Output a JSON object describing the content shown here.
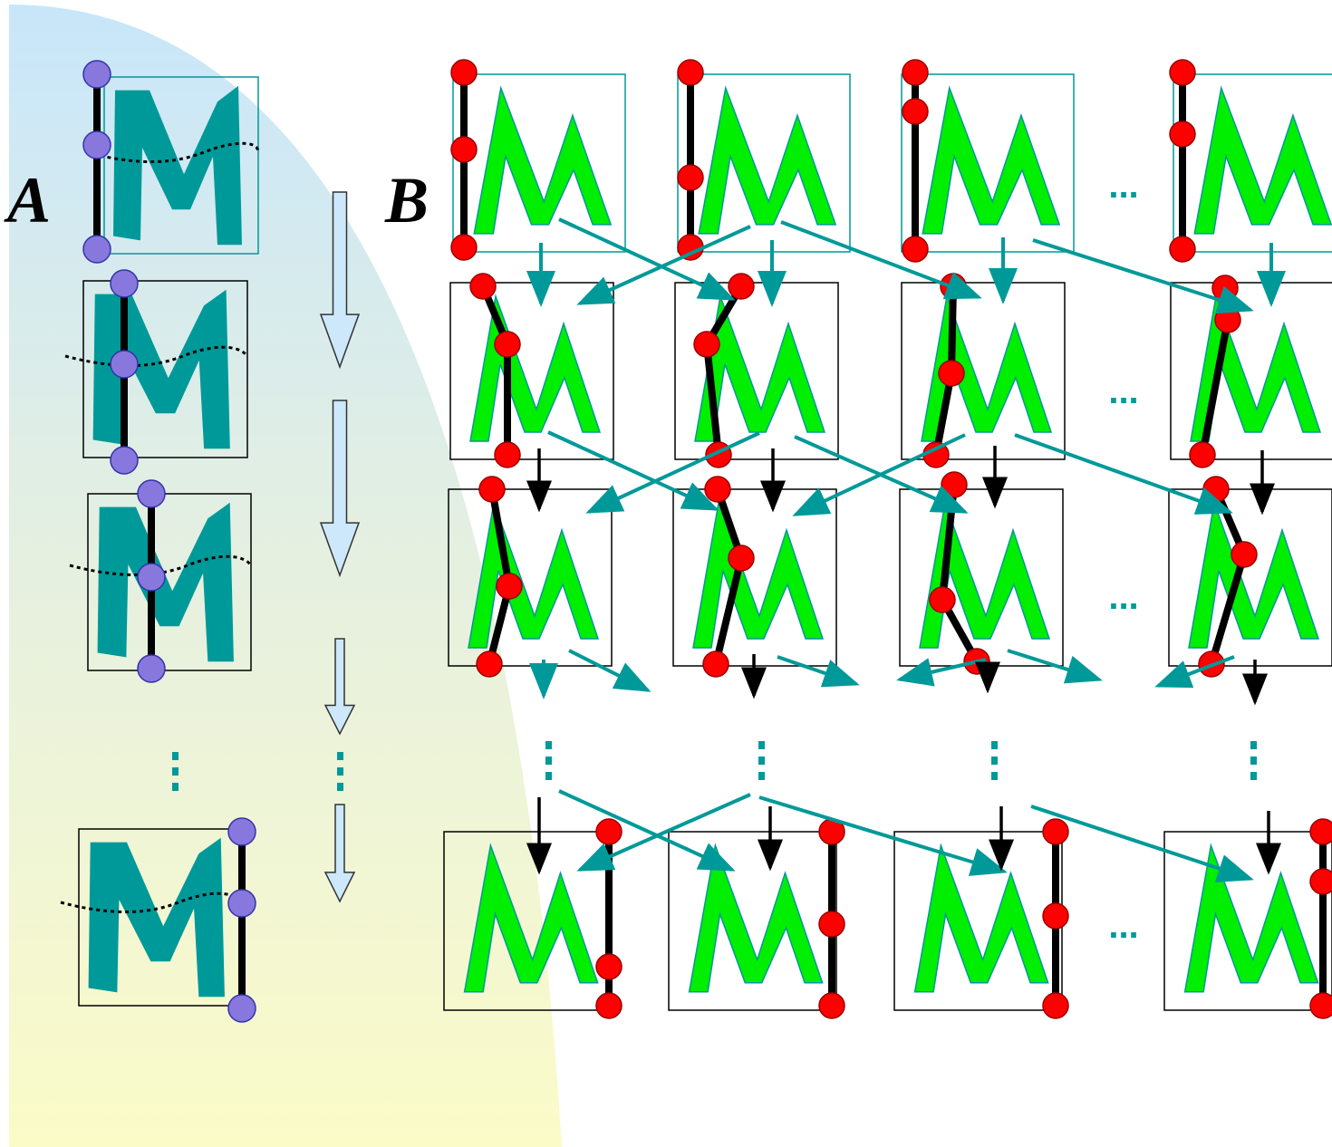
{
  "panels": [
    {
      "label": "A"
    },
    {
      "label": "B"
    }
  ],
  "ellipsis": "..."
}
